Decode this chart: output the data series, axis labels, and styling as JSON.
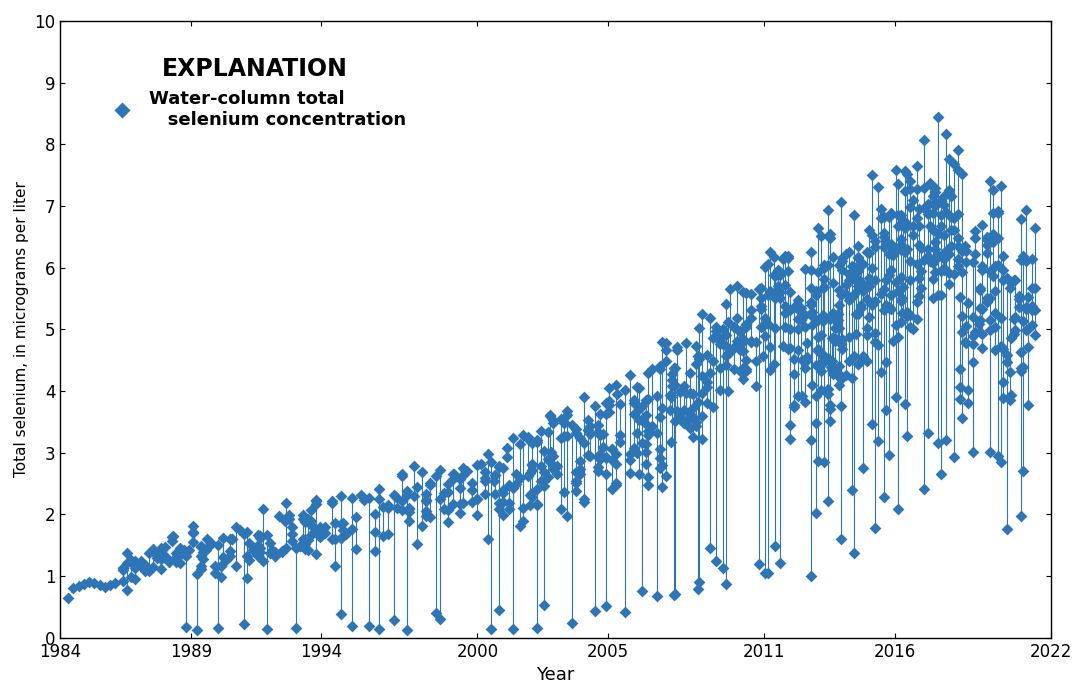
{
  "xlabel": "Year",
  "ylabel": "Total selenium, in micrograms per liter",
  "xlim": [
    1984,
    2022
  ],
  "ylim": [
    0,
    10
  ],
  "xticks": [
    1984,
    1989,
    1994,
    2000,
    2005,
    2011,
    2016,
    2022
  ],
  "yticks": [
    0,
    1,
    2,
    3,
    4,
    5,
    6,
    7,
    8,
    9,
    10
  ],
  "marker_color": "#2E75B6",
  "line_color": "#2E75B6",
  "legend_title": "EXPLANATION",
  "legend_label": "Water-column total\n   selenium concentration",
  "background_color": "#ffffff",
  "marker": "D",
  "marker_size": 6
}
